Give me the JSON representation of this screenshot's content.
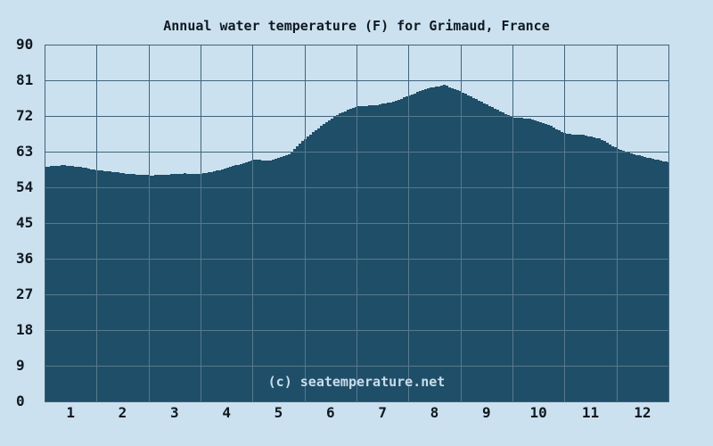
{
  "page": {
    "background": "#cbe1ef"
  },
  "chart_data": {
    "type": "area",
    "title": "Annual water temperature (F) for Grimaud, France",
    "watermark": "(c) seatemperature.net",
    "xlabel": "",
    "ylabel": "",
    "xlim": [
      0,
      12
    ],
    "ylim": [
      0,
      90
    ],
    "grid": true,
    "legend_position": "none",
    "y_ticks": [
      0,
      9,
      18,
      27,
      36,
      45,
      54,
      63,
      72,
      81,
      90
    ],
    "x_tick_labels": [
      "1",
      "2",
      "3",
      "4",
      "5",
      "6",
      "7",
      "8",
      "9",
      "10",
      "11",
      "12"
    ],
    "series": [
      {
        "name": "Water temperature (F)",
        "x": [
          0,
          0.33,
          0.67,
          1,
          1.33,
          1.67,
          2,
          2.33,
          2.67,
          3,
          3.33,
          3.67,
          4,
          4.33,
          4.67,
          5,
          5.33,
          5.67,
          6,
          6.33,
          6.67,
          7,
          7.33,
          7.67,
          8,
          8.33,
          8.67,
          9,
          9.33,
          9.67,
          10,
          10.33,
          10.67,
          11,
          11.33,
          11.67,
          12
        ],
        "values": [
          59.2,
          59.6,
          59.1,
          58.3,
          57.8,
          57.3,
          57.0,
          57.2,
          57.5,
          57.4,
          58.3,
          59.6,
          60.9,
          60.8,
          62.2,
          66.4,
          69.8,
          72.8,
          74.4,
          74.7,
          75.5,
          77.2,
          78.9,
          79.8,
          78.1,
          75.9,
          73.6,
          71.6,
          71.3,
          69.8,
          67.5,
          67.2,
          66.2,
          63.7,
          62.3,
          61.2,
          60.3
        ]
      }
    ],
    "colors": {
      "background": "#cbe1ef",
      "area_fill": "#1f4e68",
      "grid_over_background": "#41647c",
      "grid_over_area": "#57798d",
      "axis_border": "#41647c",
      "text": "#101820",
      "watermark_text": "#c9dde9"
    }
  }
}
